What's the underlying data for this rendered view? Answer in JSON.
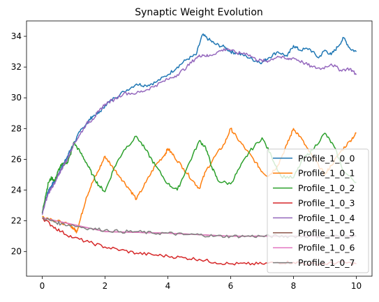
{
  "chart_data": {
    "type": "line",
    "title": "Synaptic Weight Evolution",
    "xlabel": "",
    "ylabel": "",
    "xlim": [
      -0.5,
      10.5
    ],
    "ylim": [
      18.4,
      35.0
    ],
    "xticks": [
      0,
      2,
      4,
      6,
      8,
      10
    ],
    "yticks": [
      20,
      22,
      24,
      26,
      28,
      30,
      32,
      34
    ],
    "grid": false,
    "legend_position": "lower-right",
    "series": [
      {
        "name": "Profile_1_0_0",
        "color": "#1f77b4",
        "x": [
          0,
          0.1,
          0.2,
          0.3,
          0.4,
          0.5,
          0.6,
          0.7,
          0.8,
          0.9,
          1.0,
          1.2,
          1.4,
          1.6,
          1.8,
          2.0,
          2.3,
          2.6,
          3.0,
          3.3,
          3.6,
          4.0,
          4.3,
          4.6,
          4.9,
          5.1,
          5.3,
          5.5,
          5.8,
          6.0,
          6.2,
          6.5,
          6.8,
          7.0,
          7.2,
          7.5,
          7.8,
          8.0,
          8.2,
          8.5,
          8.8,
          9.0,
          9.2,
          9.4,
          9.6,
          9.8,
          10.0
        ],
        "values": [
          22.5,
          23.3,
          24.0,
          24.3,
          24.6,
          25.0,
          25.4,
          25.8,
          26.2,
          26.6,
          27.0,
          27.8,
          28.3,
          28.8,
          29.0,
          29.5,
          30.0,
          30.4,
          30.9,
          30.8,
          31.0,
          31.5,
          32.0,
          32.5,
          32.8,
          34.1,
          33.8,
          33.5,
          33.3,
          33.0,
          32.9,
          32.7,
          32.4,
          32.3,
          32.6,
          33.0,
          32.7,
          33.4,
          33.1,
          33.2,
          32.6,
          33.1,
          32.8,
          33.3,
          33.9,
          33.2,
          33.0
        ]
      },
      {
        "name": "Profile_1_0_1",
        "color": "#ff7f0e",
        "x": [
          0,
          0.3,
          0.6,
          0.9,
          1.0,
          1.1,
          1.2,
          1.4,
          1.6,
          1.8,
          2.0,
          2.2,
          2.5,
          2.8,
          3.0,
          3.3,
          3.6,
          3.9,
          4.0,
          4.2,
          4.5,
          4.8,
          5.0,
          5.2,
          5.5,
          5.8,
          6.0,
          6.2,
          6.5,
          6.8,
          7.0,
          7.2,
          7.5,
          7.8,
          8.0,
          8.2,
          8.5,
          8.8,
          9.0,
          9.2,
          9.5,
          9.8,
          10.0
        ],
        "values": [
          22.3,
          22.1,
          21.9,
          21.7,
          21.5,
          21.3,
          22.0,
          23.5,
          24.5,
          25.3,
          26.2,
          25.6,
          24.8,
          24.0,
          23.4,
          24.5,
          25.6,
          26.3,
          26.7,
          26.2,
          25.4,
          24.6,
          24.1,
          25.2,
          26.2,
          27.0,
          28.0,
          27.4,
          26.6,
          25.8,
          25.2,
          24.9,
          25.6,
          27.0,
          28.0,
          27.5,
          26.5,
          25.6,
          25.0,
          25.6,
          26.5,
          27.2,
          27.7
        ]
      },
      {
        "name": "Profile_1_0_2",
        "color": "#2ca02c",
        "x": [
          0,
          0.1,
          0.2,
          0.3,
          0.4,
          0.5,
          0.6,
          0.7,
          0.8,
          0.9,
          1.0,
          1.2,
          1.4,
          1.6,
          1.8,
          2.0,
          2.3,
          2.6,
          3.0,
          3.3,
          3.6,
          4.0,
          4.3,
          4.6,
          5.0,
          5.2,
          5.4,
          5.6,
          6.0,
          6.3,
          6.6,
          7.0,
          7.3,
          7.6,
          8.0,
          8.3,
          8.6,
          9.0,
          9.3,
          9.6,
          10.0
        ],
        "values": [
          22.5,
          23.6,
          24.5,
          24.8,
          24.6,
          25.2,
          25.6,
          25.7,
          25.8,
          26.3,
          27.1,
          26.5,
          25.8,
          25.0,
          24.3,
          23.9,
          25.5,
          26.6,
          27.5,
          26.6,
          25.6,
          24.4,
          24.0,
          25.4,
          27.2,
          26.8,
          25.5,
          24.6,
          24.4,
          25.5,
          26.5,
          27.4,
          26.2,
          24.9,
          24.8,
          26.0,
          26.6,
          27.7,
          26.8,
          25.2,
          24.5
        ]
      },
      {
        "name": "Profile_1_0_3",
        "color": "#d62728",
        "x": [
          0,
          0.3,
          0.6,
          1.0,
          1.5,
          2.0,
          2.5,
          3.0,
          3.5,
          4.0,
          4.5,
          5.0,
          5.5,
          6.0,
          6.5,
          7.0,
          7.5,
          8.0,
          8.5,
          9.0,
          9.5,
          10.0
        ],
        "values": [
          22.2,
          21.7,
          21.3,
          20.9,
          20.6,
          20.3,
          20.1,
          19.9,
          19.8,
          19.7,
          19.6,
          19.5,
          19.3,
          19.2,
          19.2,
          19.2,
          19.3,
          19.3,
          19.2,
          19.2,
          19.3,
          19.2
        ]
      },
      {
        "name": "Profile_1_0_4",
        "color": "#9467bd",
        "x": [
          0,
          0.1,
          0.2,
          0.3,
          0.4,
          0.5,
          0.6,
          0.7,
          0.8,
          0.9,
          1.0,
          1.2,
          1.4,
          1.6,
          1.8,
          2.0,
          2.3,
          2.6,
          3.0,
          3.3,
          3.6,
          4.0,
          4.3,
          4.6,
          4.9,
          5.1,
          5.3,
          5.6,
          5.9,
          6.2,
          6.5,
          6.8,
          7.0,
          7.2,
          7.5,
          7.8,
          8.0,
          8.3,
          8.6,
          8.9,
          9.2,
          9.5,
          9.8,
          10.0
        ],
        "values": [
          22.4,
          23.2,
          23.8,
          24.2,
          24.4,
          24.9,
          25.3,
          25.7,
          26.0,
          26.5,
          27.0,
          27.6,
          28.3,
          28.6,
          29.1,
          29.6,
          29.9,
          30.3,
          30.3,
          30.5,
          30.8,
          31.2,
          31.5,
          32.0,
          32.6,
          32.8,
          32.7,
          33.0,
          33.2,
          32.9,
          32.9,
          32.5,
          32.4,
          32.4,
          32.7,
          32.5,
          32.6,
          32.3,
          32.0,
          31.9,
          32.2,
          31.8,
          31.9,
          31.5
        ]
      },
      {
        "name": "Profile_1_0_5",
        "color": "#8c564b",
        "x": [
          0,
          2,
          4,
          6,
          8,
          10
        ],
        "values": [
          22.2,
          21.3,
          21.2,
          21.0,
          21.0,
          21.0
        ]
      },
      {
        "name": "Profile_1_0_6",
        "color": "#e377c2",
        "x": [
          0,
          2,
          4,
          6,
          8,
          10
        ],
        "values": [
          22.2,
          21.3,
          21.2,
          21.0,
          21.0,
          21.0
        ]
      },
      {
        "name": "Profile_1_0_7",
        "color": "#7f7f7f",
        "x": [
          0,
          0.3,
          0.6,
          1.0,
          1.5,
          2.0,
          2.5,
          3.0,
          3.5,
          4.0,
          4.5,
          5.0,
          5.5,
          6.0,
          6.5,
          7.0,
          7.5,
          8.0,
          8.5,
          9.0,
          9.5,
          10.0
        ],
        "values": [
          22.2,
          22.0,
          21.8,
          21.7,
          21.5,
          21.4,
          21.3,
          21.3,
          21.2,
          21.2,
          21.1,
          21.1,
          21.0,
          21.0,
          21.0,
          21.0,
          21.0,
          21.0,
          21.0,
          21.0,
          21.0,
          21.0
        ]
      }
    ]
  }
}
